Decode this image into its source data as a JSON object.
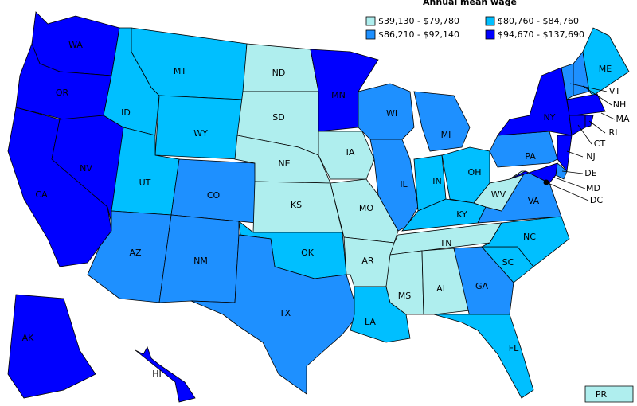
{
  "title": "Annual mean wage",
  "legend": [
    {
      "label": "$39,130 - $79,780",
      "color": "#afeeee"
    },
    {
      "label": "$80,760 - $84,760",
      "color": "#00bfff"
    },
    {
      "label": "$86,210 - $92,140",
      "color": "#1e90ff"
    },
    {
      "label": "$94,670 - $137,690",
      "color": "#0000ff"
    }
  ],
  "states": [
    {
      "label": "WA",
      "group": 3
    },
    {
      "label": "OR",
      "group": 3
    },
    {
      "label": "CA",
      "group": 3
    },
    {
      "label": "NV",
      "group": 3
    },
    {
      "label": "ID",
      "group": 1
    },
    {
      "label": "MT",
      "group": 1
    },
    {
      "label": "WY",
      "group": 1
    },
    {
      "label": "UT",
      "group": 1
    },
    {
      "label": "CO",
      "group": 2
    },
    {
      "label": "AZ",
      "group": 2
    },
    {
      "label": "NM",
      "group": 2
    },
    {
      "label": "ND",
      "group": 0
    },
    {
      "label": "SD",
      "group": 0
    },
    {
      "label": "NE",
      "group": 0
    },
    {
      "label": "KS",
      "group": 0
    },
    {
      "label": "OK",
      "group": 1
    },
    {
      "label": "TX",
      "group": 2
    },
    {
      "label": "MN",
      "group": 3
    },
    {
      "label": "IA",
      "group": 0
    },
    {
      "label": "MO",
      "group": 0
    },
    {
      "label": "AR",
      "group": 0
    },
    {
      "label": "LA",
      "group": 1
    },
    {
      "label": "WI",
      "group": 2
    },
    {
      "label": "IL",
      "group": 2
    },
    {
      "label": "MI",
      "group": 2
    },
    {
      "label": "IN",
      "group": 1
    },
    {
      "label": "OH",
      "group": 1
    },
    {
      "label": "KY",
      "group": 1
    },
    {
      "label": "TN",
      "group": 0
    },
    {
      "label": "MS",
      "group": 0
    },
    {
      "label": "AL",
      "group": 0
    },
    {
      "label": "GA",
      "group": 2
    },
    {
      "label": "FL",
      "group": 1
    },
    {
      "label": "SC",
      "group": 1
    },
    {
      "label": "NC",
      "group": 1
    },
    {
      "label": "VA",
      "group": 2
    },
    {
      "label": "WV",
      "group": 0
    },
    {
      "label": "PA",
      "group": 2
    },
    {
      "label": "NY",
      "group": 3
    },
    {
      "label": "NJ",
      "group": 3
    },
    {
      "label": "DE",
      "group": 2
    },
    {
      "label": "MD",
      "group": 3
    },
    {
      "label": "VT",
      "group": 2
    },
    {
      "label": "NH",
      "group": 2
    },
    {
      "label": "ME",
      "group": 1
    },
    {
      "label": "MA",
      "group": 3
    },
    {
      "label": "CT",
      "group": 3
    },
    {
      "label": "RI",
      "group": 3
    },
    {
      "label": "AK",
      "group": 3
    },
    {
      "label": "HI",
      "group": 3
    },
    {
      "label": "PR",
      "group": 0
    },
    {
      "label": "DC",
      "group": 3
    }
  ]
}
